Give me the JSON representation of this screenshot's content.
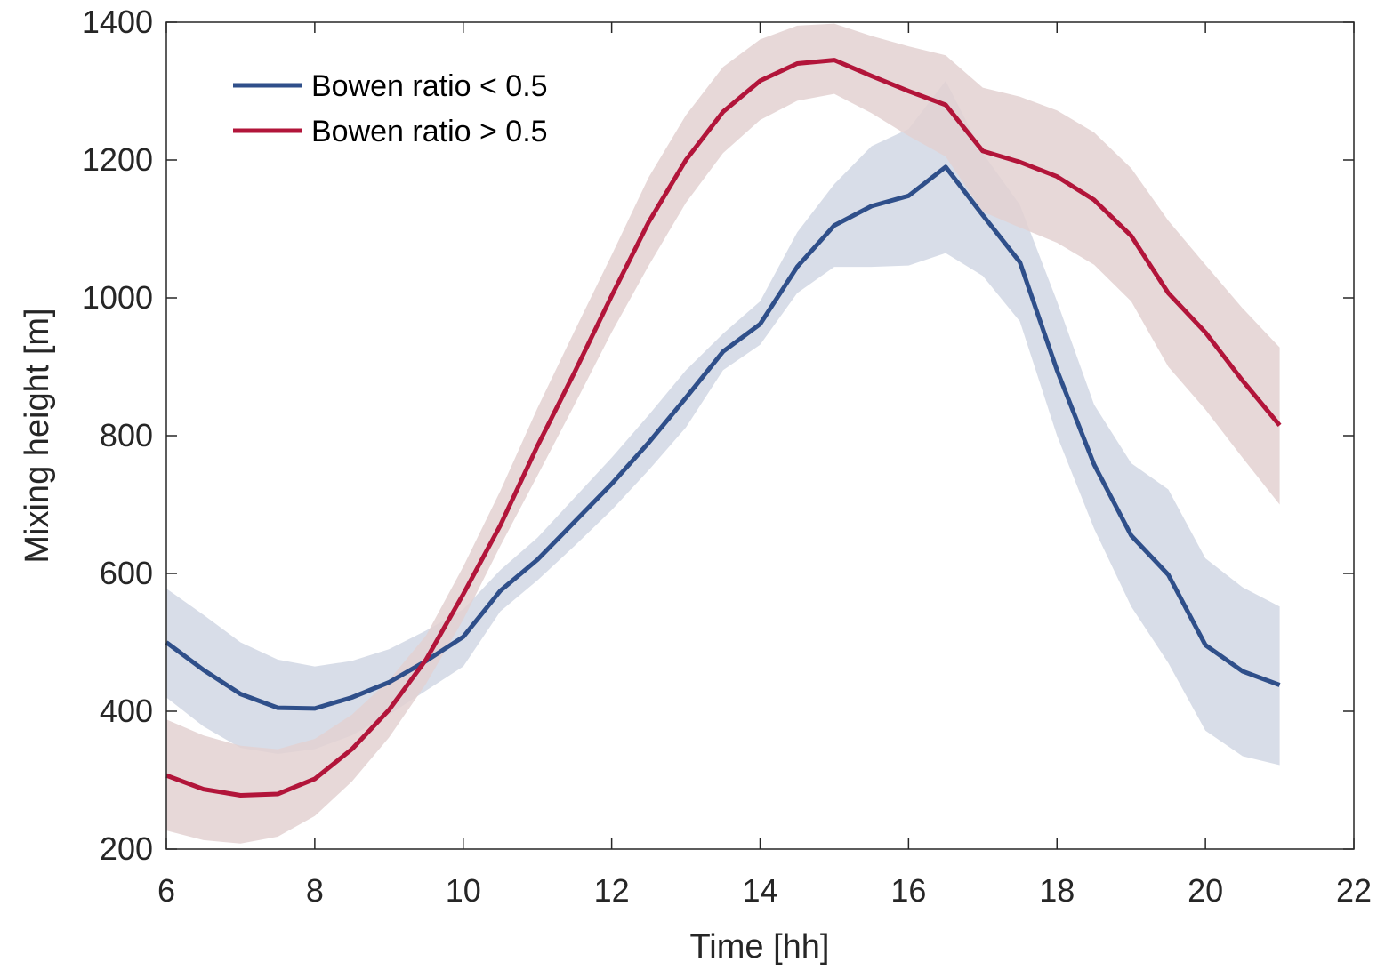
{
  "chart_data": {
    "type": "line",
    "xlabel": "Time [hh]",
    "ylabel": "Mixing height [m]",
    "xlim": [
      6,
      22
    ],
    "ylim": [
      200,
      1400
    ],
    "xticks": [
      6,
      8,
      10,
      12,
      14,
      16,
      18,
      20,
      22
    ],
    "yticks": [
      200,
      400,
      600,
      800,
      1000,
      1200,
      1400
    ],
    "grid": false,
    "legend_position": "top-left",
    "x": [
      6,
      6.5,
      7,
      7.5,
      8,
      8.5,
      9,
      9.5,
      10,
      10.5,
      11,
      11.5,
      12,
      12.5,
      13,
      13.5,
      14,
      14.5,
      15,
      15.5,
      16,
      16.5,
      17,
      17.5,
      18,
      18.5,
      19,
      19.5,
      20,
      20.5,
      21
    ],
    "series": [
      {
        "name": "Bowen ratio < 0.5",
        "color": "#2f4f8a",
        "band_color": "#d1d7e4",
        "values": [
          500,
          460,
          425,
          405,
          404,
          420,
          442,
          473,
          508,
          575,
          620,
          675,
          730,
          790,
          855,
          922,
          962,
          1045,
          1105,
          1133,
          1148,
          1190,
          1120,
          1052,
          895,
          758,
          655,
          598,
          496,
          458,
          438
        ],
        "lower": [
          420,
          378,
          347,
          338,
          345,
          365,
          395,
          430,
          465,
          545,
          590,
          640,
          692,
          750,
          812,
          895,
          932,
          1007,
          1045,
          1045,
          1047,
          1065,
          1032,
          966,
          800,
          665,
          552,
          470,
          372,
          335,
          322
        ],
        "upper": [
          578,
          540,
          500,
          475,
          465,
          473,
          490,
          517,
          548,
          605,
          652,
          710,
          768,
          830,
          895,
          948,
          995,
          1095,
          1165,
          1220,
          1245,
          1315,
          1210,
          1135,
          995,
          845,
          760,
          722,
          622,
          580,
          552
        ]
      },
      {
        "name": "Bowen ratio > 0.5",
        "color": "#b2153a",
        "band_color": "#e3d1d1",
        "values": [
          307,
          287,
          278,
          280,
          302,
          345,
          402,
          475,
          570,
          670,
          785,
          892,
          1003,
          1110,
          1200,
          1270,
          1315,
          1340,
          1345,
          1322,
          1300,
          1280,
          1213,
          1197,
          1176,
          1142,
          1090,
          1007,
          950,
          880,
          815
        ],
        "lower": [
          227,
          213,
          208,
          218,
          248,
          298,
          362,
          440,
          533,
          640,
          742,
          845,
          950,
          1047,
          1138,
          1210,
          1258,
          1286,
          1296,
          1268,
          1235,
          1205,
          1125,
          1102,
          1080,
          1048,
          995,
          900,
          838,
          768,
          700
        ],
        "upper": [
          388,
          365,
          350,
          345,
          360,
          395,
          445,
          510,
          610,
          720,
          840,
          952,
          1062,
          1175,
          1265,
          1335,
          1375,
          1395,
          1398,
          1380,
          1365,
          1352,
          1305,
          1292,
          1272,
          1240,
          1188,
          1112,
          1048,
          985,
          928
        ]
      }
    ]
  }
}
